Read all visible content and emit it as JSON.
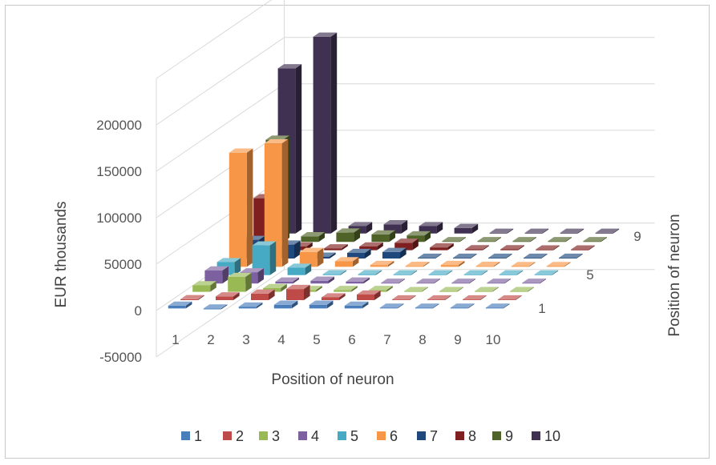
{
  "chart_data": {
    "type": "bar3d",
    "title": "",
    "ylabel": "EUR thousands",
    "xlabel": "Position of neuron",
    "zlabel": "Position of neuron",
    "ylim": [
      -50000,
      250000
    ],
    "y_ticks": [
      "-50000",
      "0",
      "50000",
      "100000",
      "150000",
      "200000"
    ],
    "x_categories": [
      "1",
      "2",
      "3",
      "4",
      "5",
      "6",
      "7",
      "8",
      "9",
      "10"
    ],
    "z_tick_labels": [
      "1",
      "5",
      "9"
    ],
    "grid": true,
    "legend_position": "bottom",
    "series": [
      {
        "name": "1",
        "color": "#4a7ebb",
        "values": [
          3000,
          -1000,
          2000,
          4000,
          4000,
          3000,
          0,
          0,
          0,
          0
        ]
      },
      {
        "name": "2",
        "color": "#be4b48",
        "values": [
          1000,
          4000,
          7000,
          12000,
          3000,
          6000,
          0,
          0,
          0,
          0
        ]
      },
      {
        "name": "3",
        "color": "#98b954",
        "values": [
          7000,
          16000,
          4000,
          2000,
          2000,
          2000,
          0,
          0,
          0,
          0
        ]
      },
      {
        "name": "4",
        "color": "#7d60a0",
        "values": [
          14000,
          12000,
          2000,
          3000,
          2000,
          0,
          0,
          0,
          0,
          0
        ]
      },
      {
        "name": "5",
        "color": "#46aac5",
        "values": [
          14000,
          32000,
          8000,
          1000,
          1000,
          0,
          0,
          0,
          0,
          0
        ]
      },
      {
        "name": "6",
        "color": "#f79646",
        "values": [
          123000,
          133000,
          16000,
          6000,
          2000,
          1000,
          2000,
          1000,
          0,
          0
        ]
      },
      {
        "name": "7",
        "color": "#1f497d",
        "values": [
          20000,
          15000,
          2000,
          6000,
          7000,
          0,
          0,
          0,
          0,
          0
        ]
      },
      {
        "name": "8",
        "color": "#7f1f1f",
        "values": [
          56000,
          4000,
          2000,
          4000,
          8000,
          3000,
          1000,
          1000,
          0,
          0
        ]
      },
      {
        "name": "9",
        "color": "#4f6228",
        "values": [
          110000,
          6000,
          10000,
          8000,
          7000,
          0,
          0,
          0,
          0,
          0
        ]
      },
      {
        "name": "10",
        "color": "#403152",
        "values": [
          178000,
          212000,
          8000,
          10000,
          8000,
          6000,
          0,
          0,
          0,
          0
        ]
      }
    ]
  }
}
